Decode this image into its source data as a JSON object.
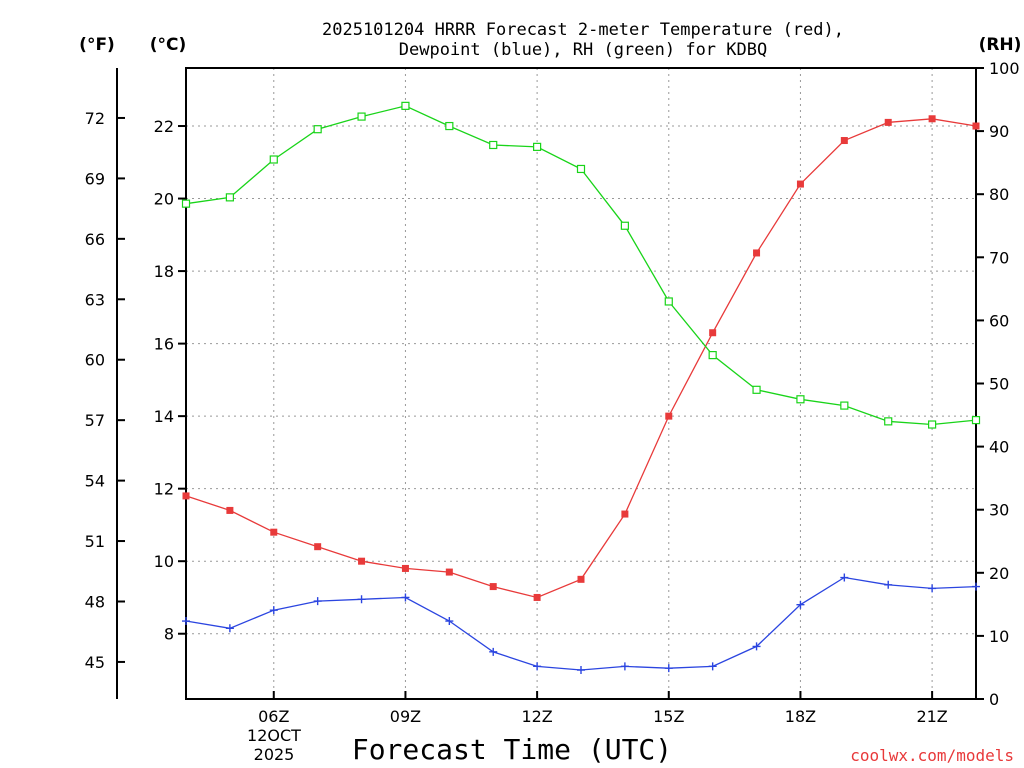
{
  "chart_data": {
    "type": "line",
    "title_line1": "2025101204 HRRR Forecast 2-meter Temperature (red),",
    "title_line2": "Dewpoint (blue), RH (green) for KDBQ",
    "xlabel": "Forecast Time (UTC)",
    "credit": "coolwx.com/models",
    "units": {
      "fahrenheit": "(°F)",
      "celsius": "(°C)",
      "rh": "(RH)"
    },
    "x_hours": [
      4,
      5,
      6,
      7,
      8,
      9,
      10,
      11,
      12,
      13,
      14,
      15,
      16,
      17,
      18,
      19,
      20,
      21,
      22
    ],
    "xlim": [
      4,
      22
    ],
    "x_ticks": [
      {
        "hour": 6,
        "label": "06Z"
      },
      {
        "hour": 9,
        "label": "09Z"
      },
      {
        "hour": 12,
        "label": "12Z"
      },
      {
        "hour": 15,
        "label": "15Z"
      },
      {
        "hour": 18,
        "label": "18Z"
      },
      {
        "hour": 21,
        "label": "21Z"
      }
    ],
    "date_label": [
      "12OCT",
      "2025"
    ],
    "ylim_celsius": [
      6.2,
      23.6
    ],
    "celsius_ticks": [
      8,
      10,
      12,
      14,
      16,
      18,
      20,
      22
    ],
    "fahrenheit_ticks": [
      45,
      48,
      51,
      54,
      57,
      60,
      63,
      66,
      69,
      72
    ],
    "ylim_rh": [
      0,
      100
    ],
    "rh_ticks": [
      0,
      10,
      20,
      30,
      40,
      50,
      60,
      70,
      80,
      90,
      100
    ],
    "series": [
      {
        "name": "Temperature",
        "axis": "celsius",
        "color": "#e83a3a",
        "marker": "filled-square",
        "values": [
          11.8,
          11.4,
          10.8,
          10.4,
          10.0,
          9.8,
          9.7,
          9.3,
          9.0,
          9.5,
          11.3,
          14.0,
          16.3,
          18.5,
          20.4,
          21.6,
          22.1,
          22.2,
          22.0
        ]
      },
      {
        "name": "Dewpoint",
        "axis": "celsius",
        "color": "#2b45e0",
        "marker": "plus",
        "values": [
          8.35,
          8.15,
          8.65,
          8.9,
          8.95,
          9.0,
          8.35,
          7.5,
          7.1,
          7.0,
          7.1,
          7.05,
          7.1,
          7.65,
          8.8,
          9.55,
          9.35,
          9.25,
          9.3
        ]
      },
      {
        "name": "RH",
        "axis": "rh",
        "color": "#19d419",
        "marker": "open-square",
        "values": [
          78.5,
          79.5,
          85.5,
          90.3,
          92.3,
          94.0,
          90.8,
          87.8,
          87.5,
          84.0,
          75.0,
          63.0,
          54.5,
          49.0,
          47.5,
          46.5,
          44.0,
          43.5,
          44.2
        ]
      }
    ]
  }
}
